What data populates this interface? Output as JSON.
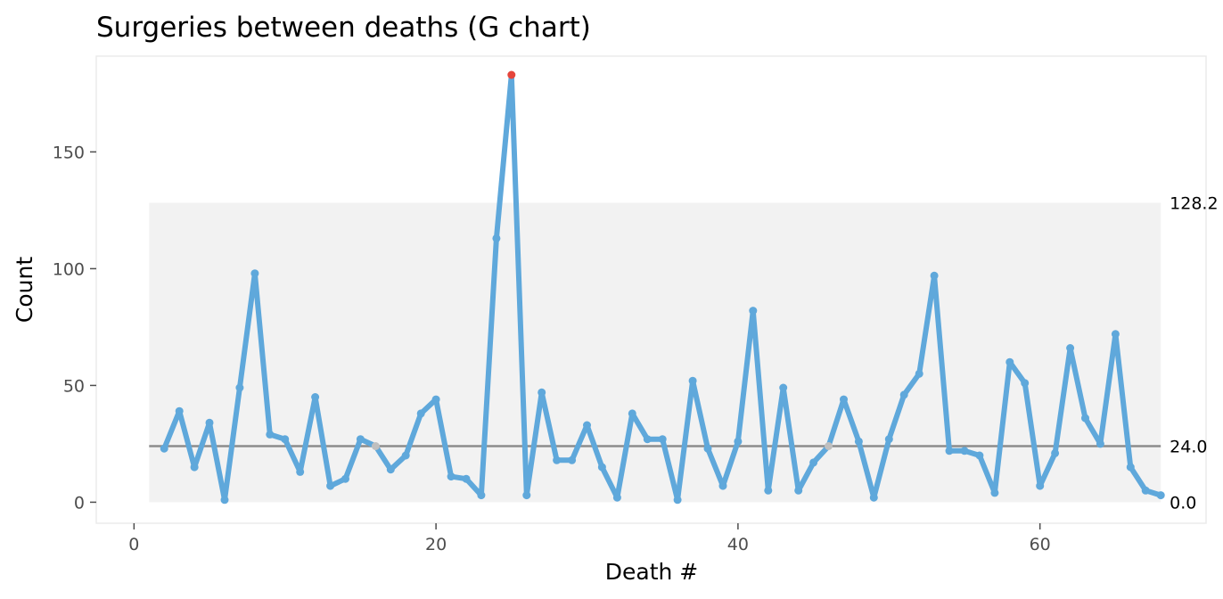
{
  "chart_data": {
    "type": "line",
    "title": "Surgeries between deaths (G chart)",
    "xlabel": "Death #",
    "ylabel": "Count",
    "xlim": [
      -2.5,
      71
    ],
    "ylim": [
      -9,
      191
    ],
    "x_ticks": [
      0,
      20,
      40,
      60
    ],
    "y_ticks": [
      0,
      50,
      100,
      150
    ],
    "grid": false,
    "control_band": {
      "lower": 0.0,
      "upper": 128.2,
      "x_from": 1,
      "x_to": 68
    },
    "center_line": 24.0,
    "limit_labels": {
      "upper": "128.2",
      "center": "24.0",
      "lower": "0.0"
    },
    "colors": {
      "line": "#5fa8db",
      "signal": "#e5453b",
      "on_centre": "#bfbfbf",
      "band": "#f2f2f2",
      "center_line": "#8c8c8c",
      "panel_border": "#ebebeb"
    },
    "series": [
      {
        "x": [
          2,
          3,
          4,
          5,
          6,
          7,
          8,
          9,
          10,
          11,
          12,
          13,
          14,
          15,
          16,
          17,
          18,
          19,
          20,
          21,
          22,
          23,
          24,
          25,
          26,
          27,
          28,
          29,
          30,
          31,
          32,
          33,
          34,
          35,
          36,
          37,
          38,
          39,
          40,
          41,
          42,
          43,
          44,
          45,
          46,
          47,
          48,
          49,
          50,
          51,
          52,
          53,
          54,
          55,
          56,
          57,
          58,
          59,
          60,
          61,
          62,
          63,
          64,
          65,
          66,
          67,
          68
        ],
        "values": [
          23,
          39,
          15,
          34,
          1,
          49,
          98,
          29,
          27,
          13,
          45,
          7,
          10,
          27,
          24,
          14,
          20,
          38,
          44,
          11,
          10,
          3,
          113,
          183,
          3,
          47,
          18,
          18,
          33,
          15,
          2,
          38,
          27,
          27,
          1,
          52,
          23,
          7,
          26,
          82,
          5,
          49,
          5,
          17,
          24,
          44,
          26,
          2,
          27,
          46,
          55,
          97,
          22,
          22,
          20,
          4,
          60,
          51,
          7,
          21,
          66,
          36,
          25,
          72,
          15,
          5,
          3
        ]
      }
    ],
    "highlighted_points": {
      "signal_x": [
        25
      ],
      "on_centre_x": [
        16,
        46
      ]
    }
  }
}
